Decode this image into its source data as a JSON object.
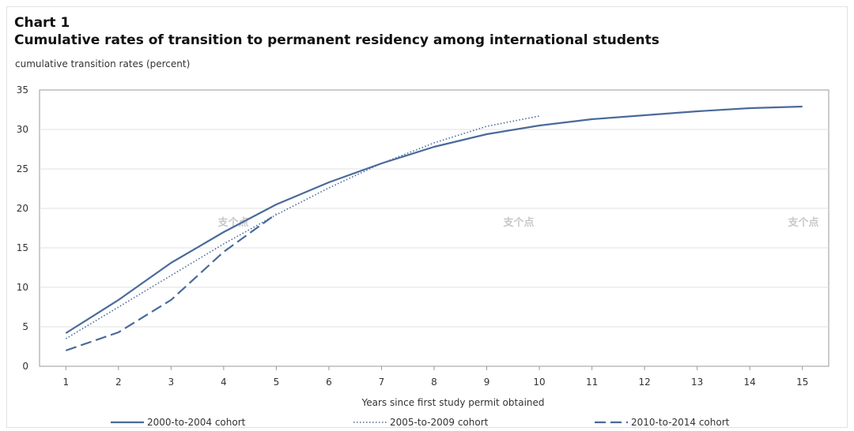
{
  "chart_label": "Chart 1",
  "chart_data": {
    "type": "line",
    "title": "Cumulative rates of transition to permanent residency among international students",
    "ylabel": "cumulative transition rates (percent)",
    "xlabel": "Years since first study permit obtained",
    "ylim": [
      0,
      35
    ],
    "yticks": [
      0,
      5,
      10,
      15,
      20,
      25,
      30,
      35
    ],
    "x": [
      1,
      2,
      3,
      4,
      5,
      6,
      7,
      8,
      9,
      10,
      11,
      12,
      13,
      14,
      15
    ],
    "grid": true,
    "legend_position": "bottom",
    "series": [
      {
        "name": "2000-to-2004 cohort",
        "style": "solid",
        "x": [
          1,
          2,
          3,
          4,
          5,
          6,
          7,
          8,
          9,
          10,
          11,
          12,
          13,
          14,
          15
        ],
        "values": [
          4.2,
          8.4,
          13.1,
          17.0,
          20.5,
          23.3,
          25.7,
          27.8,
          29.4,
          30.5,
          31.3,
          31.8,
          32.3,
          32.7,
          32.9
        ]
      },
      {
        "name": "2005-to-2009 cohort",
        "style": "dotted",
        "x": [
          1,
          2,
          3,
          4,
          5,
          6,
          7,
          8,
          9,
          10
        ],
        "values": [
          3.5,
          7.5,
          11.5,
          15.5,
          19.2,
          22.6,
          25.7,
          28.3,
          30.4,
          31.7
        ]
      },
      {
        "name": "2010-to-2014 cohort",
        "style": "dashed",
        "x": [
          1,
          2,
          3,
          4,
          5
        ],
        "values": [
          2.0,
          4.3,
          8.4,
          14.5,
          19.3
        ]
      }
    ],
    "colors": {
      "line": "#4a6a9b",
      "grid": "#e0e0e0",
      "axis": "#9a9a9a"
    }
  },
  "watermark": "支个点"
}
